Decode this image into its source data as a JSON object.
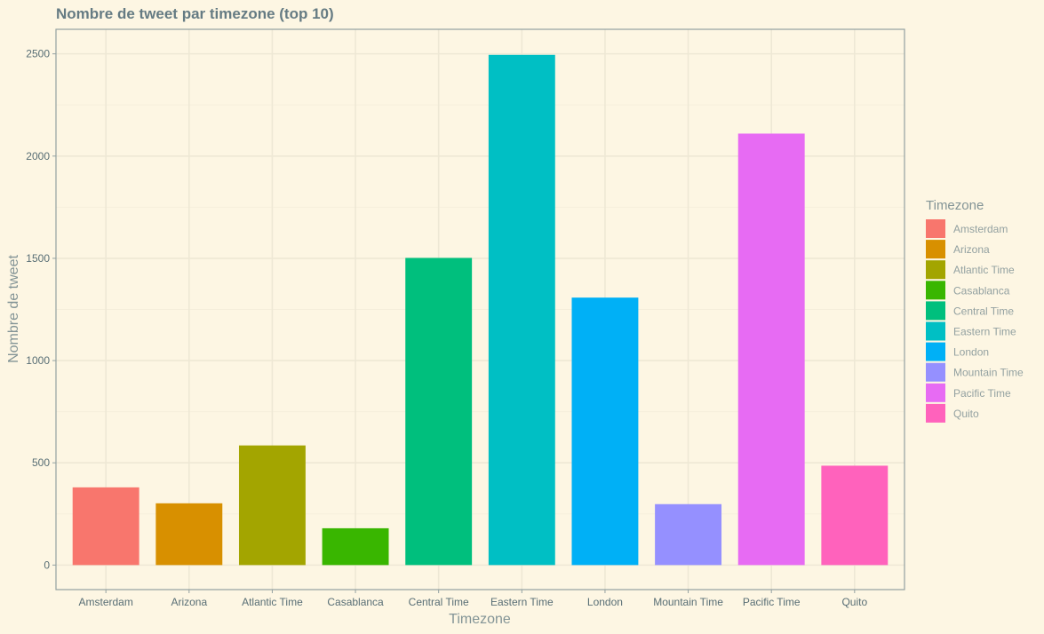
{
  "chart_data": {
    "type": "bar",
    "title": "Nombre de tweet par timezone (top 10)",
    "xlabel": "Timezone",
    "ylabel": "Nombre de tweet",
    "categories": [
      "Amsterdam",
      "Arizona",
      "Atlantic Time",
      "Casablanca",
      "Central Time",
      "Eastern Time",
      "London",
      "Mountain Time",
      "Pacific Time",
      "Quito"
    ],
    "values": [
      380,
      302,
      585,
      180,
      1502,
      2495,
      1308,
      298,
      2110,
      486
    ],
    "colors": [
      "#F8766D",
      "#D89000",
      "#A3A500",
      "#39B600",
      "#00BF7D",
      "#00BFC4",
      "#00B0F6",
      "#9590FF",
      "#E76BF3",
      "#FF62BC"
    ],
    "ylim": [
      -120,
      2620
    ],
    "yticks": [
      0,
      500,
      1000,
      1500,
      2000,
      2500
    ],
    "grid": true,
    "legend": {
      "title": "Timezone",
      "position": "right",
      "entries": [
        "Amsterdam",
        "Arizona",
        "Atlantic Time",
        "Casablanca",
        "Central Time",
        "Eastern Time",
        "London",
        "Mountain Time",
        "Pacific Time",
        "Quito"
      ]
    }
  }
}
